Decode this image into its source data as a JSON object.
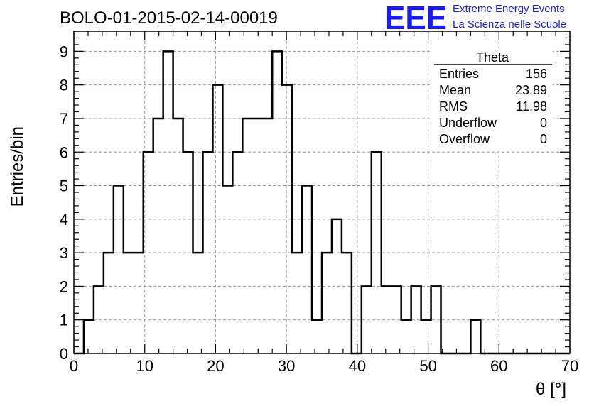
{
  "header": {
    "run_title": "BOLO-01-2015-02-14-00019",
    "logo_mark": "EEE",
    "logo_line1": "Extreme Energy Events",
    "logo_line2": "La Scienza nelle Scuole"
  },
  "stats": {
    "title": "Theta",
    "rows": [
      {
        "label": "Entries",
        "value": "156"
      },
      {
        "label": "Mean",
        "value": "23.89"
      },
      {
        "label": "RMS",
        "value": "11.98"
      },
      {
        "label": "Underflow",
        "value": "0"
      },
      {
        "label": "Overflow",
        "value": "0"
      }
    ]
  },
  "colors": {
    "line": "#000000",
    "grid": "#9a9a9a",
    "logo": "#1a1aff"
  },
  "chart_data": {
    "type": "bar",
    "style": "step-histogram",
    "xlabel": "θ [°]",
    "ylabel": "Entries/bin",
    "xlim": [
      0,
      70
    ],
    "ylim": [
      0,
      9.6
    ],
    "xticks": [
      0,
      10,
      20,
      30,
      40,
      50,
      60,
      70
    ],
    "yticks": [
      0,
      1,
      2,
      3,
      4,
      5,
      6,
      7,
      8,
      9
    ],
    "grid": true,
    "bin_width": 1.4,
    "bin_edges_start": 0,
    "values": [
      0,
      1,
      2,
      3,
      5,
      3,
      3,
      6,
      7,
      9,
      7,
      6,
      3,
      6,
      8,
      5,
      6,
      7,
      7,
      7,
      9,
      8,
      3,
      5,
      1,
      3,
      4,
      3,
      0,
      2,
      6,
      2,
      2,
      1,
      2,
      1,
      2,
      0,
      0,
      0,
      1,
      0,
      0,
      0,
      0,
      0,
      0,
      0,
      0,
      0
    ]
  }
}
